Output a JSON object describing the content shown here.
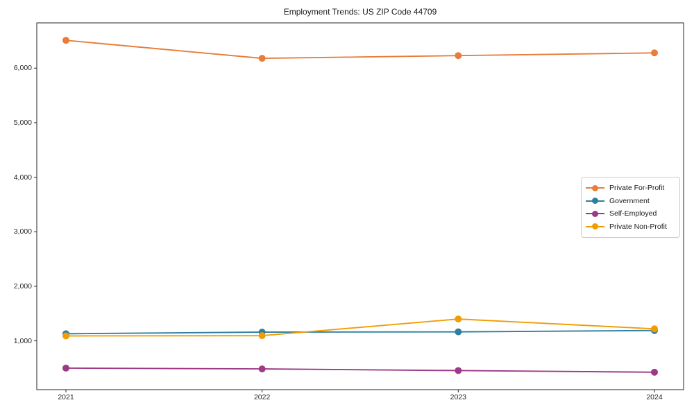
{
  "title": "Employment Trends: US ZIP Code 44709",
  "chart_data": {
    "type": "line",
    "title": "Employment Trends: US ZIP Code 44709",
    "xlabel": "",
    "ylabel": "",
    "x": [
      2021,
      2022,
      2023,
      2024
    ],
    "x_tick_labels": [
      "2021",
      "2022",
      "2023",
      "2024"
    ],
    "series": [
      {
        "name": "Private For-Profit",
        "color": "#e87d3b",
        "values": [
          6510,
          6180,
          6230,
          6280
        ]
      },
      {
        "name": "Government",
        "color": "#2e7f9e",
        "values": [
          1130,
          1160,
          1165,
          1190
        ]
      },
      {
        "name": "Self-Employed",
        "color": "#9c3a87",
        "values": [
          500,
          485,
          455,
          425
        ]
      },
      {
        "name": "Private Non-Profit",
        "color": "#f29c05",
        "values": [
          1090,
          1095,
          1400,
          1220
        ]
      }
    ],
    "y_ticks": [
      1000,
      2000,
      3000,
      4000,
      5000,
      6000
    ],
    "y_tick_labels": [
      "1,000",
      "2,000",
      "3,000",
      "4,000",
      "5,000",
      "6,000"
    ],
    "ylim": [
      105,
      6830
    ],
    "grid": false,
    "marker": "circle",
    "legend_position": "center-right",
    "axis_color": "#262626"
  }
}
